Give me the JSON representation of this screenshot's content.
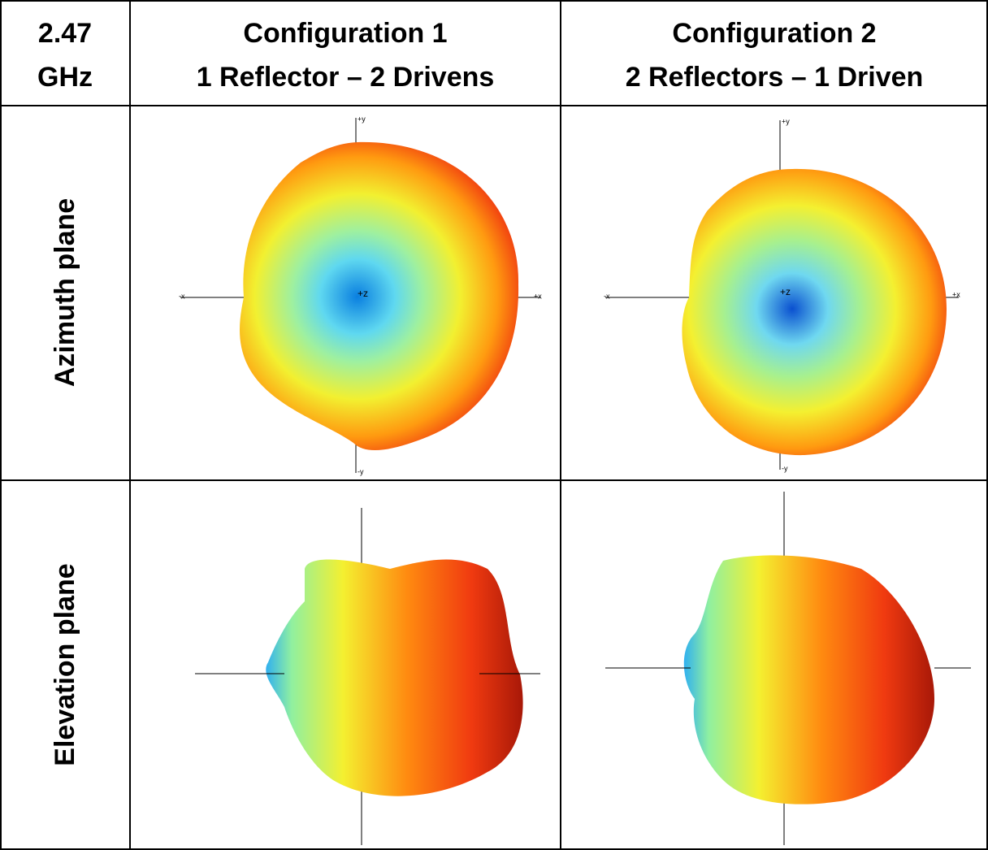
{
  "table": {
    "header": [
      [
        "2.47",
        "GHz"
      ],
      [
        "Configuration 1",
        "1 Reflector – 2 Drivens"
      ],
      [
        "Configuration 2",
        "2 Reflectors – 1 Driven"
      ]
    ],
    "rows": [
      {
        "label": "Azimuth plane",
        "cells": [
          {
            "axes": {
              "top": "+y",
              "left": "-x",
              "right": "+x",
              "bottom": "-y",
              "center": "+z"
            }
          },
          {
            "axes": {
              "top": "+y",
              "left": "-x",
              "right": "+x",
              "bottom": "-y",
              "center": "+z"
            }
          }
        ]
      },
      {
        "label": "Elevation plane"
      }
    ]
  }
}
